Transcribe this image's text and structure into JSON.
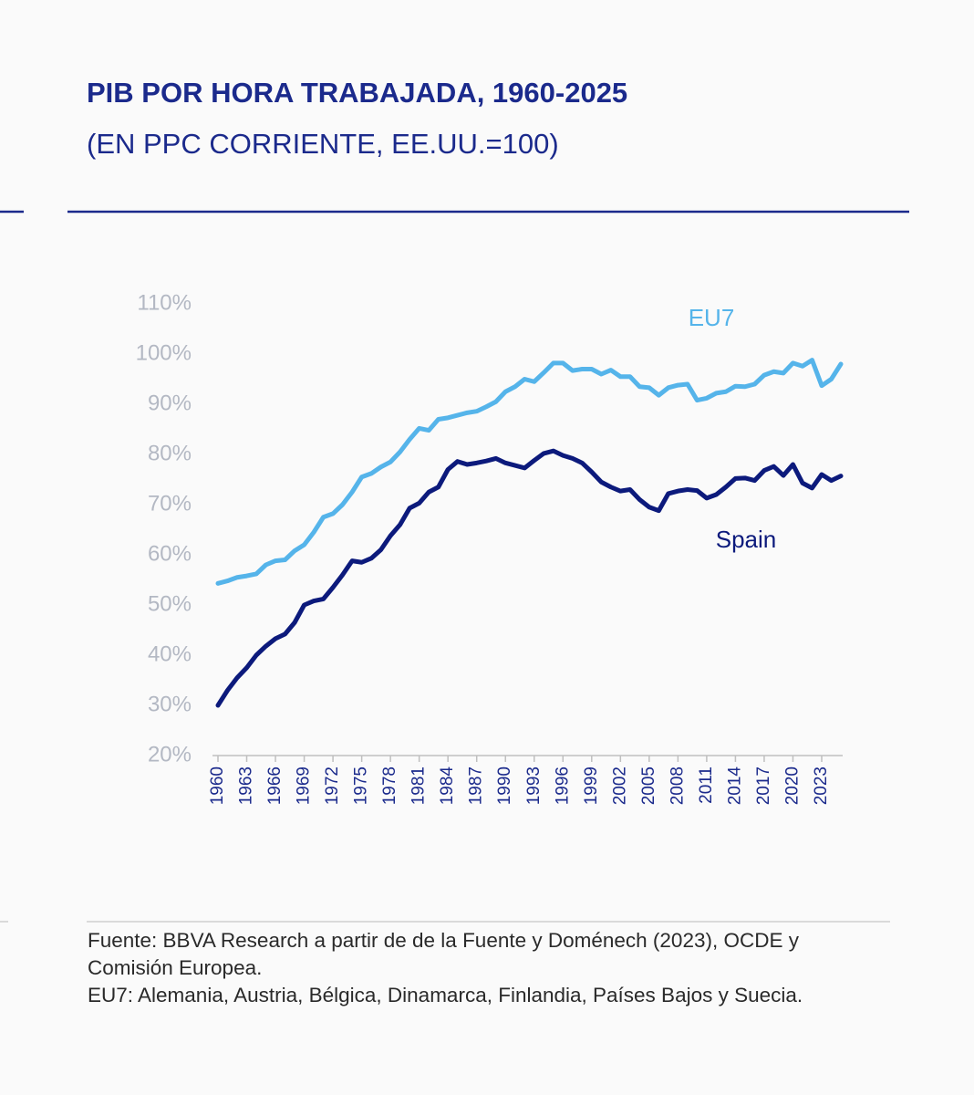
{
  "chart_data": {
    "type": "line",
    "title": "PIB POR HORA TRABAJADA, 1960-2025",
    "subtitle": "(EN PPC CORRIENTE, EE.UU.=100)",
    "x": [
      1960,
      1961,
      1962,
      1963,
      1964,
      1965,
      1966,
      1967,
      1968,
      1969,
      1970,
      1971,
      1972,
      1973,
      1974,
      1975,
      1976,
      1977,
      1978,
      1979,
      1980,
      1981,
      1982,
      1983,
      1984,
      1985,
      1986,
      1987,
      1988,
      1989,
      1990,
      1991,
      1992,
      1993,
      1994,
      1995,
      1996,
      1997,
      1998,
      1999,
      2000,
      2001,
      2002,
      2003,
      2004,
      2005,
      2006,
      2007,
      2008,
      2009,
      2010,
      2011,
      2012,
      2013,
      2014,
      2015,
      2016,
      2017,
      2018,
      2019,
      2020,
      2021,
      2022,
      2023,
      2024,
      2025
    ],
    "xlim": [
      1960,
      2025
    ],
    "xticks": [
      1960,
      1963,
      1966,
      1969,
      1972,
      1975,
      1978,
      1981,
      1984,
      1987,
      1990,
      1993,
      1996,
      1999,
      2002,
      2005,
      2008,
      2011,
      2014,
      2017,
      2020,
      2023
    ],
    "ylim": [
      20,
      110
    ],
    "yticks": [
      {
        "value": 20,
        "label": "20%"
      },
      {
        "value": 30,
        "label": "30%"
      },
      {
        "value": 40,
        "label": "40%"
      },
      {
        "value": 50,
        "label": "50%"
      },
      {
        "value": 60,
        "label": "60%"
      },
      {
        "value": 70,
        "label": "70%"
      },
      {
        "value": 80,
        "label": "80%"
      },
      {
        "value": 90,
        "label": "90%"
      },
      {
        "value": 100,
        "label": "100%"
      },
      {
        "value": 110,
        "label": "110%"
      }
    ],
    "series": [
      {
        "name": "EU7",
        "color": "#55b4ea",
        "values": [
          54.3,
          54.8,
          55.5,
          55.8,
          56.2,
          58,
          58.8,
          59,
          60.8,
          62,
          64.5,
          67.5,
          68.2,
          70,
          72.5,
          75.5,
          76.2,
          77.5,
          78.5,
          80.5,
          83,
          85.2,
          84.8,
          87,
          87.3,
          87.8,
          88.3,
          88.6,
          89.5,
          90.5,
          92.5,
          93.5,
          95,
          94.5,
          96.3,
          98.2,
          98.2,
          96.7,
          97,
          97,
          96,
          96.8,
          95.5,
          95.5,
          93.5,
          93.3,
          91.8,
          93.3,
          93.8,
          94,
          90.8,
          91.2,
          92.2,
          92.5,
          93.6,
          93.5,
          94,
          95.8,
          96.5,
          96.2,
          98.2,
          97.6,
          98.8,
          93.7,
          95,
          98
        ]
      },
      {
        "name": "Spain",
        "color": "#0c1a7c",
        "values": [
          30,
          33,
          35.5,
          37.5,
          40,
          41.8,
          43.3,
          44.2,
          46.5,
          50,
          50.8,
          51.2,
          53.5,
          56,
          58.8,
          58.5,
          59.3,
          61,
          63.8,
          66,
          69.3,
          70.3,
          72.5,
          73.5,
          77,
          78.6,
          78,
          78.3,
          78.7,
          79.2,
          78.3,
          77.8,
          77.3,
          78.8,
          80.2,
          80.7,
          79.8,
          79.2,
          78.3,
          76.5,
          74.5,
          73.5,
          72.7,
          73,
          71,
          69.5,
          68.8,
          72.2,
          72.7,
          73,
          72.8,
          71.3,
          72,
          73.5,
          75.2,
          75.3,
          74.8,
          76.8,
          77.6,
          75.8,
          78,
          74.3,
          73.3,
          76,
          74.8,
          75.7
        ]
      }
    ],
    "notes": [
      "Fuente: BBVA Research a partir de de la Fuente y Doménech (2023), OCDE y Comisión Europea.",
      "EU7: Alemania, Austria, Bélgica, Dinamarca, Finlandia, Países Bajos y Suecia."
    ]
  }
}
